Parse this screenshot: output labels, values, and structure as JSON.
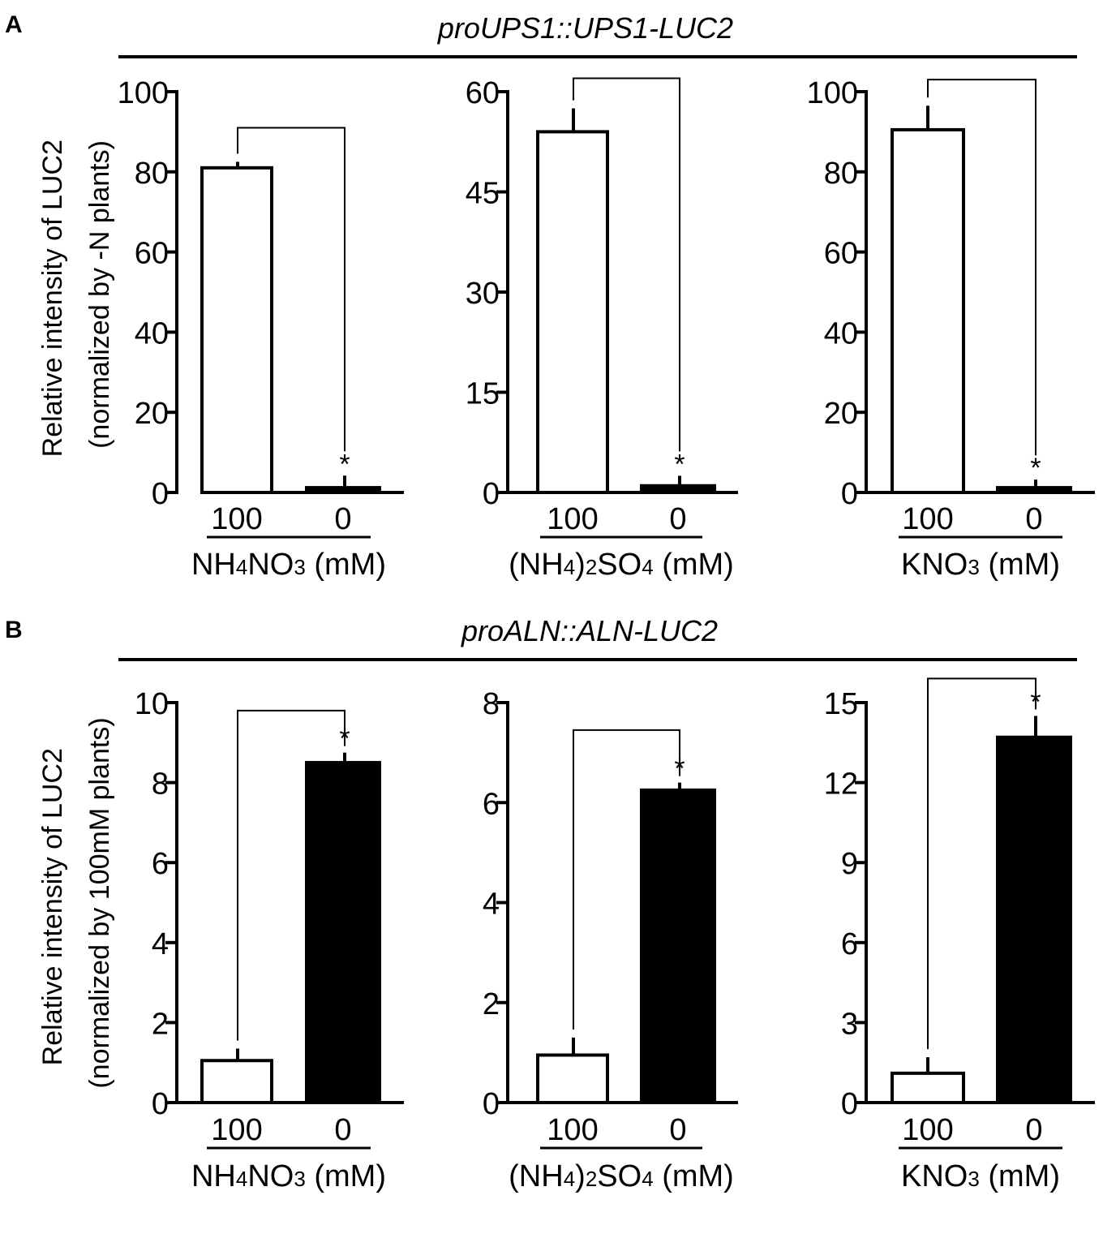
{
  "panels": [
    {
      "letter": "A",
      "construct": "proUPS1::UPS1-LUC2",
      "ylabel_line1": "Relative intensity of LUC2",
      "ylabel_line2": "(normalized by -N plants)"
    },
    {
      "letter": "B",
      "construct": "proALN::ALN-LUC2",
      "ylabel_line1": "Relative intensity of LUC2",
      "ylabel_line2": "(normalized by 100mM plants)"
    }
  ],
  "colors": {
    "open_bar": "#ffffff",
    "filled_bar": "#000000",
    "ink": "#000000"
  },
  "chart_data": [
    {
      "type": "bar",
      "panel": "A",
      "title": "proUPS1::UPS1-LUC2",
      "xlabel": {
        "base": "NH",
        "sub1": "4",
        "mid": "NO",
        "sub2": "3",
        "unit": " (mM)"
      },
      "ylabel": "Relative intensity of LUC2 (normalized by -N plants)",
      "categories": [
        "100",
        "0"
      ],
      "values": [
        81,
        1.2
      ],
      "errors": [
        1.5,
        3
      ],
      "ylim": [
        0,
        100
      ],
      "yticks": [
        "0",
        "20",
        "40",
        "60",
        "80",
        "100"
      ],
      "significance": "*",
      "star_on": 1,
      "bracket_top": 91
    },
    {
      "type": "bar",
      "panel": "A",
      "title": "proUPS1::UPS1-LUC2",
      "xlabel": {
        "base": "(NH",
        "sub1": "4",
        "mid": ")",
        "sub2": "2",
        "tail": "SO",
        "sub3": "4",
        "unit": " (mM)"
      },
      "ylabel": "Relative intensity of LUC2 (normalized by -N plants)",
      "categories": [
        "100",
        "0"
      ],
      "values": [
        54,
        1
      ],
      "errors": [
        3.5,
        1.5
      ],
      "ylim": [
        0,
        60
      ],
      "yticks": [
        "0",
        "15",
        "30",
        "45",
        "60"
      ],
      "significance": "*",
      "star_on": 1,
      "bracket_top": 62
    },
    {
      "type": "bar",
      "panel": "A",
      "title": "proUPS1::UPS1-LUC2",
      "xlabel": {
        "base": "KNO",
        "sub1": "3",
        "unit": " (mM)"
      },
      "ylabel": "Relative intensity of LUC2 (normalized by -N plants)",
      "categories": [
        "100",
        "0"
      ],
      "values": [
        90.5,
        1.2
      ],
      "errors": [
        6,
        2
      ],
      "ylim": [
        0,
        100
      ],
      "yticks": [
        "0",
        "20",
        "40",
        "60",
        "80",
        "100"
      ],
      "significance": "*",
      "star_on": 1,
      "bracket_top": 103
    },
    {
      "type": "bar",
      "panel": "B",
      "title": "proALN::ALN-LUC2",
      "xlabel": {
        "base": "NH",
        "sub1": "4",
        "mid": "NO",
        "sub2": "3",
        "unit": " (mM)"
      },
      "ylabel": "Relative intensity of LUC2 (normalized by 100mM plants)",
      "categories": [
        "100",
        "0"
      ],
      "values": [
        1.05,
        8.5
      ],
      "errors": [
        0.3,
        0.25
      ],
      "ylim": [
        0,
        10
      ],
      "yticks": [
        "0",
        "2",
        "4",
        "6",
        "8",
        "10"
      ],
      "significance": "*",
      "star_on": 1,
      "bracket_top": 9.8
    },
    {
      "type": "bar",
      "panel": "B",
      "title": "proALN::ALN-LUC2",
      "xlabel": {
        "base": "(NH",
        "sub1": "4",
        "mid": ")",
        "sub2": "2",
        "tail": "SO",
        "sub3": "4",
        "unit": " (mM)"
      },
      "ylabel": "Relative intensity of LUC2 (normalized by 100mM plants)",
      "categories": [
        "100",
        "0"
      ],
      "values": [
        0.95,
        6.25
      ],
      "errors": [
        0.35,
        0.15
      ],
      "ylim": [
        0,
        8
      ],
      "yticks": [
        "0",
        "2",
        "4",
        "6",
        "8"
      ],
      "significance": "*",
      "star_on": 1,
      "bracket_top": 7.45
    },
    {
      "type": "bar",
      "panel": "B",
      "title": "proALN::ALN-LUC2",
      "xlabel": {
        "base": "KNO",
        "sub1": "3",
        "unit": " (mM)"
      },
      "ylabel": "Relative intensity of LUC2 (normalized by 100mM plants)",
      "categories": [
        "100",
        "0"
      ],
      "values": [
        1.1,
        13.7
      ],
      "errors": [
        0.6,
        0.8
      ],
      "ylim": [
        0,
        15
      ],
      "yticks": [
        "0",
        "3",
        "6",
        "9",
        "12",
        "15"
      ],
      "significance": "*",
      "star_on": 1,
      "bracket_top": 15.9
    }
  ]
}
